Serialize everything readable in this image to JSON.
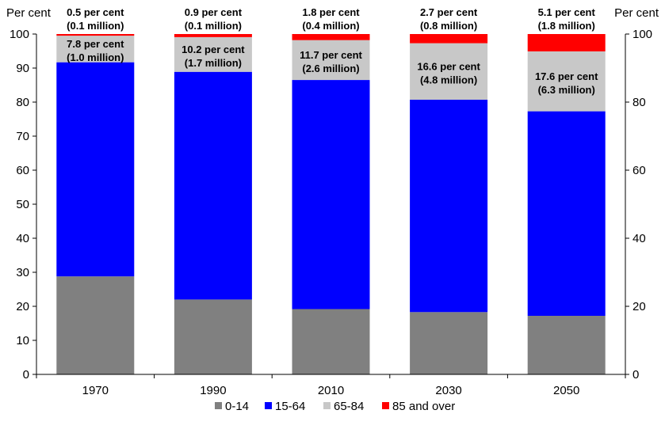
{
  "chart_data": {
    "type": "bar",
    "stacked": true,
    "left_unit": "Per cent",
    "right_unit": "Per cent",
    "ylim": [
      0,
      100
    ],
    "yticks": [
      0,
      10,
      20,
      30,
      40,
      50,
      60,
      70,
      80,
      90,
      100
    ],
    "right_yticks": [
      0,
      20,
      40,
      60,
      80,
      100
    ],
    "categories": [
      "1970",
      "1990",
      "2010",
      "2030",
      "2050"
    ],
    "series": [
      {
        "name": "0-14",
        "color": "#808080",
        "values": [
          28.8,
          22.0,
          19.2,
          18.3,
          17.2
        ]
      },
      {
        "name": "15-64",
        "color": "#0000ff",
        "values": [
          62.9,
          66.9,
          67.3,
          62.4,
          60.1
        ]
      },
      {
        "name": "65-84",
        "color": "#c8c8c8",
        "values": [
          7.8,
          10.2,
          11.7,
          16.6,
          17.6
        ]
      },
      {
        "name": "85 and over",
        "color": "#ff0000",
        "values": [
          0.5,
          0.9,
          1.8,
          2.7,
          5.1
        ]
      }
    ],
    "annotations": [
      {
        "top_line1": "0.5 per cent",
        "top_line2": "(0.1 million)",
        "mid_line1": "7.8 per cent",
        "mid_line2": "(1.0 million)"
      },
      {
        "top_line1": "0.9 per cent",
        "top_line2": "(0.1 million)",
        "mid_line1": "10.2 per cent",
        "mid_line2": "(1.7 million)"
      },
      {
        "top_line1": "1.8 per cent",
        "top_line2": "(0.4 million)",
        "mid_line1": "11.7 per cent",
        "mid_line2": "(2.6 million)"
      },
      {
        "top_line1": "2.7 per cent",
        "top_line2": "(0.8 million)",
        "mid_line1": "16.6 per cent",
        "mid_line2": "(4.8 million)"
      },
      {
        "top_line1": "5.1 per cent",
        "top_line2": "(1.8 million)",
        "mid_line1": "17.6 per cent",
        "mid_line2": "(6.3 million)"
      }
    ]
  }
}
